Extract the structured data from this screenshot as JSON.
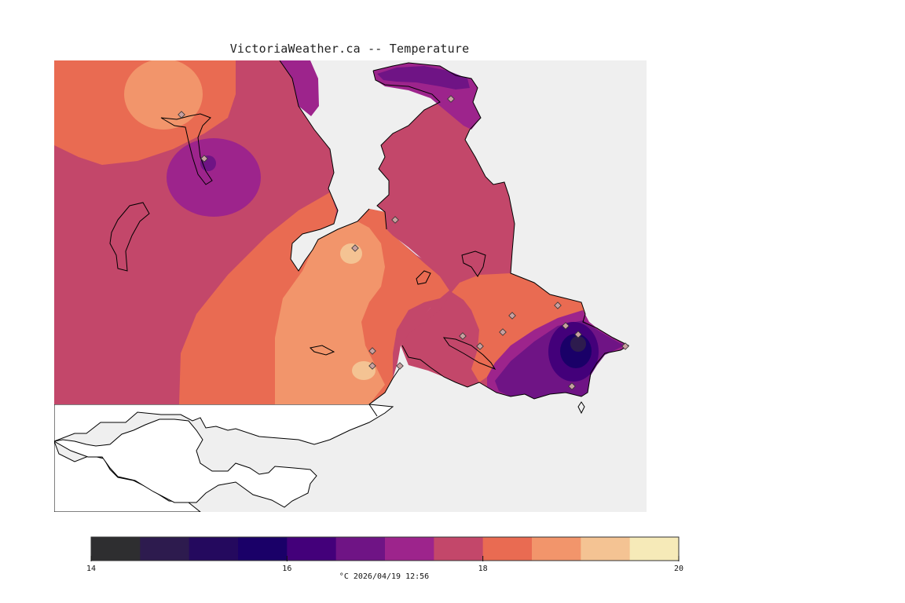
{
  "title": "VictoriaWeather.ca -- Temperature",
  "legend": {
    "ticks": [
      "14",
      "16",
      "18",
      "20"
    ],
    "caption": "°C  2026/04/19 12:56",
    "range": [
      14,
      20
    ],
    "bins": [
      {
        "from": 14.0,
        "to": 14.5,
        "color": "#2e2e30"
      },
      {
        "from": 14.5,
        "to": 15.0,
        "color": "#2d1b4e"
      },
      {
        "from": 15.0,
        "to": 15.5,
        "color": "#24095e"
      },
      {
        "from": 15.5,
        "to": 16.0,
        "color": "#1a0068"
      },
      {
        "from": 16.0,
        "to": 16.5,
        "color": "#43007a"
      },
      {
        "from": 16.5,
        "to": 17.0,
        "color": "#6f1485"
      },
      {
        "from": 17.0,
        "to": 17.5,
        "color": "#9d248c"
      },
      {
        "from": 17.5,
        "to": 18.0,
        "color": "#c3476a"
      },
      {
        "from": 18.0,
        "to": 18.5,
        "color": "#e96b52"
      },
      {
        "from": 18.5,
        "to": 19.0,
        "color": "#f2956b"
      },
      {
        "from": 19.0,
        "to": 19.5,
        "color": "#f4c393"
      },
      {
        "from": 19.5,
        "to": 20.0,
        "color": "#f6eab8"
      }
    ]
  },
  "colors": {
    "water": "#efefef",
    "land_outside": "#ffffff",
    "coast": "#000000",
    "station": "#c8a0a0"
  }
}
